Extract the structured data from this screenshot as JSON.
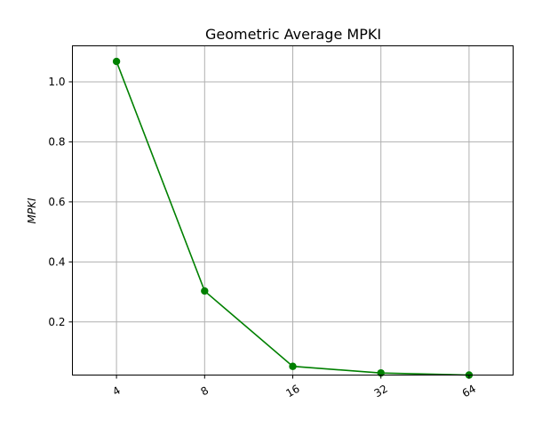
{
  "chart_data": {
    "type": "line",
    "title": "Geometric Average MPKI",
    "xlabel": "",
    "ylabel": "MPKI",
    "categories": [
      "4",
      "8",
      "16",
      "32",
      "64"
    ],
    "series": [
      {
        "values": [
          1.068,
          0.303,
          0.052,
          0.03,
          0.023
        ],
        "color": "#008000",
        "marker": "circle"
      }
    ],
    "yticks": [
      "0.2",
      "0.4",
      "0.6",
      "0.8",
      "1.0"
    ],
    "ytick_values": [
      0.2,
      0.4,
      0.6,
      0.8,
      1.0
    ],
    "ylim": [
      0.023,
      1.12
    ],
    "grid": true,
    "x_tick_rotation": -30
  }
}
